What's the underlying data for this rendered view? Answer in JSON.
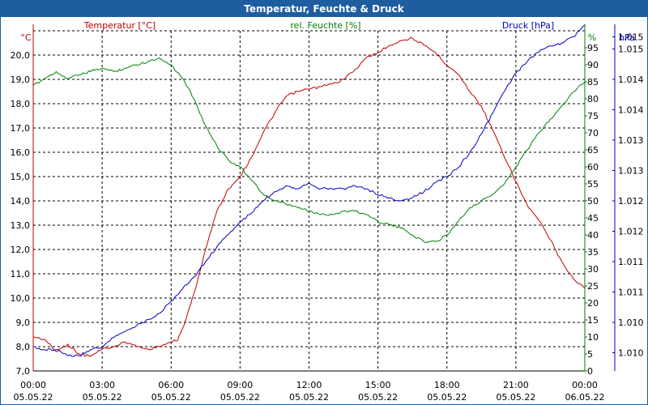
{
  "chart_data": {
    "type": "line",
    "title": "Temperatur, Feuchte & Druck",
    "legend": [
      {
        "label": "Temperatur [°C]",
        "color": "#c00000"
      },
      {
        "label": "rel. Feuchte [%]",
        "color": "#008000"
      },
      {
        "label": "Druck [hPa]",
        "color": "#0000c0"
      }
    ],
    "x_ticks": [
      {
        "time": "00:00",
        "date": "05.05.22"
      },
      {
        "time": "03:00",
        "date": "05.05.22"
      },
      {
        "time": "06:00",
        "date": "05.05.22"
      },
      {
        "time": "09:00",
        "date": "05.05.22"
      },
      {
        "time": "12:00",
        "date": "05.05.22"
      },
      {
        "time": "15:00",
        "date": "05.05.22"
      },
      {
        "time": "18:00",
        "date": "05.05.22"
      },
      {
        "time": "21:00",
        "date": "05.05.22"
      },
      {
        "time": "00:00",
        "date": "06.05.22"
      }
    ],
    "xlim_hours": [
      0,
      24
    ],
    "y_temp": {
      "unit": "°C",
      "ylim": [
        7.0,
        21.0
      ],
      "ticks": [
        "7,0",
        "8,0",
        "9,0",
        "10,0",
        "11,0",
        "12,0",
        "13,0",
        "14,0",
        "15,0",
        "16,0",
        "17,0",
        "18,0",
        "19,0",
        "20,0"
      ]
    },
    "y_hum": {
      "unit": "%",
      "ylim": [
        0,
        100
      ],
      "ticks": [
        "0",
        "5",
        "10",
        "15",
        "20",
        "25",
        "30",
        "35",
        "40",
        "45",
        "50",
        "55",
        "60",
        "65",
        "70",
        "75",
        "80",
        "85",
        "90",
        "95"
      ]
    },
    "y_press": {
      "unit": "hPa",
      "ylim": [
        1009.6,
        1015.2
      ],
      "ticks": [
        {
          "v": 1009.9,
          "label": "1.010"
        },
        {
          "v": 1010.4,
          "label": "1.010"
        },
        {
          "v": 1010.9,
          "label": "1.011"
        },
        {
          "v": 1011.4,
          "label": "1.011"
        },
        {
          "v": 1011.9,
          "label": "1.012"
        },
        {
          "v": 1012.4,
          "label": "1.012"
        },
        {
          "v": 1012.9,
          "label": "1.013"
        },
        {
          "v": 1013.4,
          "label": "1.013"
        },
        {
          "v": 1013.9,
          "label": "1.014"
        },
        {
          "v": 1014.4,
          "label": "1.014"
        },
        {
          "v": 1014.9,
          "label": "1.015"
        },
        {
          "v": 1015.1,
          "label": "1.015"
        }
      ]
    },
    "series": [
      {
        "name": "Temperatur [°C]",
        "axis": "temp",
        "color": "#c00000",
        "x": [
          0,
          0.5,
          1,
          1.5,
          2,
          2.5,
          3,
          3.5,
          4,
          4.5,
          5,
          5.5,
          6,
          6.3,
          6.6,
          7,
          7.5,
          8,
          8.5,
          9,
          9.5,
          10,
          10.5,
          11,
          11.5,
          12,
          12.5,
          13,
          13.5,
          14,
          14.5,
          15,
          15.5,
          16,
          16.5,
          17,
          17.5,
          18,
          18.5,
          19,
          19.5,
          20,
          20.5,
          21,
          21.5,
          22,
          22.5,
          23,
          23.5,
          24
        ],
        "values": [
          8.4,
          8.3,
          7.8,
          8.1,
          7.7,
          7.6,
          7.9,
          8.0,
          8.2,
          8.0,
          7.9,
          8.0,
          8.2,
          8.3,
          9.0,
          10.2,
          12.0,
          13.6,
          14.5,
          15.0,
          15.8,
          16.8,
          17.6,
          18.3,
          18.5,
          18.6,
          18.7,
          18.8,
          19.0,
          19.4,
          19.9,
          20.1,
          20.4,
          20.6,
          20.7,
          20.4,
          20.1,
          19.6,
          19.2,
          18.5,
          17.9,
          16.9,
          15.8,
          14.8,
          13.8,
          13.2,
          12.4,
          11.5,
          10.8,
          10.4
        ]
      },
      {
        "name": "rel. Feuchte [%]",
        "axis": "hum",
        "color": "#008000",
        "x": [
          0,
          0.5,
          1,
          1.5,
          2,
          2.5,
          3,
          3.5,
          4,
          4.5,
          5,
          5.5,
          6,
          6.5,
          7,
          7.5,
          8,
          8.5,
          9,
          9.5,
          10,
          10.5,
          11,
          11.5,
          12,
          12.5,
          13,
          13.5,
          14,
          14.5,
          15,
          15.5,
          16,
          16.5,
          17,
          17.5,
          18,
          18.5,
          19,
          19.5,
          20,
          20.5,
          21,
          21.5,
          22,
          22.5,
          23,
          23.5,
          24
        ],
        "values": [
          84,
          86,
          88,
          86,
          87,
          88,
          89,
          88,
          89,
          90,
          91,
          92,
          90,
          86,
          80,
          72,
          66,
          62,
          60,
          56,
          52,
          50,
          49,
          48,
          47,
          46,
          46,
          47,
          47,
          46,
          44,
          43,
          42,
          40,
          38,
          38,
          40,
          44,
          48,
          50,
          52,
          55,
          60,
          65,
          70,
          74,
          78,
          82,
          85
        ]
      },
      {
        "name": "Druck [hPa]",
        "axis": "press",
        "color": "#0000c0",
        "x": [
          0,
          0.5,
          1,
          1.5,
          2,
          2.5,
          3,
          3.5,
          4,
          4.5,
          5,
          5.5,
          6,
          6.5,
          7,
          7.5,
          8,
          8.5,
          9,
          9.5,
          10,
          10.5,
          11,
          11.5,
          12,
          12.5,
          13,
          13.5,
          14,
          14.5,
          15,
          15.5,
          16,
          16.5,
          17,
          17.5,
          18,
          18.5,
          19,
          19.5,
          20,
          20.5,
          21,
          21.5,
          22,
          22.5,
          23,
          23.5,
          24
        ],
        "values": [
          1010.0,
          1009.95,
          1009.95,
          1009.85,
          1009.85,
          1009.95,
          1010.0,
          1010.15,
          1010.25,
          1010.35,
          1010.45,
          1010.55,
          1010.75,
          1010.95,
          1011.15,
          1011.4,
          1011.65,
          1011.85,
          1012.05,
          1012.2,
          1012.4,
          1012.55,
          1012.65,
          1012.6,
          1012.7,
          1012.6,
          1012.6,
          1012.6,
          1012.65,
          1012.6,
          1012.5,
          1012.45,
          1012.4,
          1012.45,
          1012.55,
          1012.7,
          1012.8,
          1012.95,
          1013.2,
          1013.5,
          1013.85,
          1014.2,
          1014.5,
          1014.7,
          1014.85,
          1014.95,
          1015.0,
          1015.1,
          1015.3
        ]
      }
    ]
  }
}
